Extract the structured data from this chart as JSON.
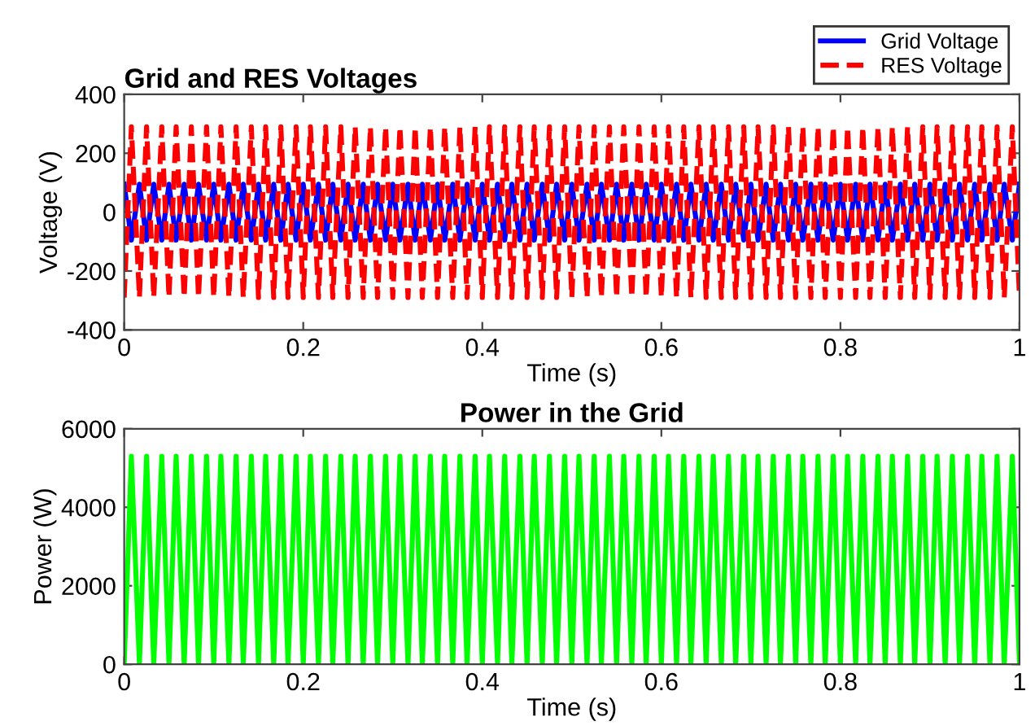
{
  "chart_data": [
    {
      "type": "line",
      "title": "Grid and RES Voltages",
      "xlabel": "Time (s)",
      "ylabel": "Voltage (V)",
      "x": [
        0,
        0.008,
        0.017,
        0.025,
        0.033,
        0.042,
        0.05,
        0.058,
        0.067,
        0.075,
        0.083,
        0.092,
        0.1,
        0.108,
        0.117,
        0.125,
        0.133,
        0.142,
        0.15,
        0.158,
        0.167,
        0.175,
        0.183,
        0.192,
        0.2,
        0.208,
        0.217,
        0.225,
        0.233,
        0.242,
        0.25,
        0.258,
        0.267,
        0.275,
        0.283,
        0.292,
        0.3,
        0.308,
        0.317,
        0.325,
        0.333,
        0.342,
        0.35,
        0.358,
        0.367,
        0.375,
        0.383,
        0.392,
        0.4,
        0.408,
        0.417,
        0.425,
        0.433,
        0.442,
        0.45,
        0.458,
        0.467,
        0.475,
        0.483,
        0.492,
        0.5,
        0.508,
        0.517,
        0.525,
        0.533,
        0.542,
        0.55,
        0.558,
        0.567,
        0.575,
        0.583,
        0.592,
        0.6,
        0.608,
        0.617,
        0.625,
        0.633,
        0.642,
        0.65,
        0.658,
        0.667,
        0.675,
        0.683,
        0.692,
        0.7,
        0.708,
        0.717,
        0.725,
        0.733,
        0.742,
        0.75,
        0.758,
        0.767,
        0.775,
        0.783,
        0.792,
        0.8,
        0.808,
        0.817,
        0.825,
        0.833,
        0.842,
        0.85,
        0.858,
        0.867,
        0.875,
        0.883,
        0.892,
        0.9,
        0.908,
        0.917,
        0.925,
        0.933,
        0.942,
        0.95,
        0.958,
        0.967,
        0.975,
        0.983,
        0.992,
        1
      ],
      "series": [
        {
          "name": "Grid Voltage",
          "color": "#0000ff",
          "line_style": "solid",
          "values": [
            95,
            -95,
            95,
            -95,
            95,
            -95,
            95,
            -95,
            95,
            -95,
            95,
            -95,
            95,
            -95,
            95,
            -95,
            95,
            -95,
            95,
            -95,
            95,
            -95,
            95,
            -95,
            95,
            -95,
            95,
            -95,
            95,
            -95,
            95,
            -95,
            95,
            -95,
            95,
            -95,
            95,
            -95,
            95,
            -95,
            95,
            -95,
            95,
            -95,
            95,
            -95,
            95,
            -95,
            95,
            -95,
            95,
            -95,
            95,
            -95,
            95,
            -95,
            95,
            -95,
            95,
            -95,
            95,
            -95,
            95,
            -95,
            95,
            -95,
            95,
            -95,
            95,
            -95,
            95,
            -95,
            95,
            -95,
            95,
            -95,
            95,
            -95,
            95,
            -95,
            95,
            -95,
            95,
            -95,
            95,
            -95,
            95,
            -95,
            95,
            -95,
            95,
            -95,
            95,
            -95,
            95,
            -95,
            95,
            -95,
            95,
            -95,
            95,
            -95,
            95,
            -95,
            95,
            -95,
            95,
            -95,
            95,
            -95,
            95,
            -95,
            95,
            -95,
            95,
            -95,
            95,
            -95,
            95,
            -95,
            95
          ]
        },
        {
          "name": "RES Voltage",
          "color": "#ff0000",
          "line_style": "dashed",
          "values": [
            -290,
            290,
            -290,
            290,
            -290,
            290,
            -290,
            290,
            -290,
            290,
            -290,
            290,
            -290,
            290,
            -290,
            290,
            -290,
            290,
            -290,
            290,
            -290,
            290,
            -290,
            290,
            -290,
            290,
            -290,
            290,
            -290,
            290,
            -290,
            290,
            -290,
            290,
            -290,
            290,
            -290,
            290,
            -290,
            290,
            -290,
            290,
            -290,
            290,
            -290,
            290,
            -290,
            290,
            -290,
            290,
            -290,
            290,
            -290,
            290,
            -290,
            290,
            -290,
            290,
            -290,
            290,
            -290,
            290,
            -290,
            290,
            -290,
            290,
            -290,
            290,
            -290,
            290,
            -290,
            290,
            -290,
            290,
            -290,
            290,
            -290,
            290,
            -290,
            290,
            -290,
            290,
            -290,
            290,
            -290,
            290,
            -290,
            290,
            -290,
            290,
            -290,
            290,
            -290,
            290,
            -290,
            290,
            -290,
            290,
            -290,
            290,
            -290,
            290,
            -290,
            290,
            -290,
            290,
            -290,
            290,
            -290,
            290,
            -290,
            290,
            -290,
            290,
            -290,
            290,
            -290,
            290,
            -290,
            290,
            -290
          ]
        }
      ],
      "xlim": [
        0,
        1
      ],
      "xticks": [
        0,
        0.2,
        0.4,
        0.6,
        0.8,
        1
      ],
      "ylim": [
        -400,
        400
      ],
      "yticks": [
        -400,
        -200,
        0,
        200,
        400
      ],
      "legend": "top right",
      "marker": "none"
    },
    {
      "type": "line",
      "title": "Power in the Grid",
      "xlabel": "Time (s)",
      "ylabel": "Power (W)",
      "x": [
        0,
        0.008,
        0.017,
        0.025,
        0.033,
        0.042,
        0.05,
        0.058,
        0.067,
        0.075,
        0.083,
        0.092,
        0.1,
        0.108,
        0.117,
        0.125,
        0.133,
        0.142,
        0.15,
        0.158,
        0.167,
        0.175,
        0.183,
        0.192,
        0.2,
        0.208,
        0.217,
        0.225,
        0.233,
        0.242,
        0.25,
        0.258,
        0.267,
        0.275,
        0.283,
        0.292,
        0.3,
        0.308,
        0.317,
        0.325,
        0.333,
        0.342,
        0.35,
        0.358,
        0.367,
        0.375,
        0.383,
        0.392,
        0.4,
        0.408,
        0.417,
        0.425,
        0.433,
        0.442,
        0.45,
        0.458,
        0.467,
        0.475,
        0.483,
        0.492,
        0.5,
        0.508,
        0.517,
        0.525,
        0.533,
        0.542,
        0.55,
        0.558,
        0.567,
        0.575,
        0.583,
        0.592,
        0.6,
        0.608,
        0.617,
        0.625,
        0.633,
        0.642,
        0.65,
        0.658,
        0.667,
        0.675,
        0.683,
        0.692,
        0.7,
        0.708,
        0.717,
        0.725,
        0.733,
        0.742,
        0.75,
        0.758,
        0.767,
        0.775,
        0.783,
        0.792,
        0.8,
        0.808,
        0.817,
        0.825,
        0.833,
        0.842,
        0.85,
        0.858,
        0.867,
        0.875,
        0.883,
        0.892,
        0.9,
        0.908,
        0.917,
        0.925,
        0.933,
        0.942,
        0.95,
        0.958,
        0.967,
        0.975,
        0.983,
        0.992,
        1
      ],
      "series": [
        {
          "color": "#00ff00",
          "line_style": "solid",
          "values": [
            0,
            5300,
            0,
            5300,
            0,
            5300,
            0,
            5300,
            0,
            5300,
            0,
            5300,
            0,
            5300,
            0,
            5300,
            0,
            5300,
            0,
            5300,
            0,
            5300,
            0,
            5300,
            0,
            5300,
            0,
            5300,
            0,
            5300,
            0,
            5300,
            0,
            5300,
            0,
            5300,
            0,
            5300,
            0,
            5300,
            0,
            5300,
            0,
            5300,
            0,
            5300,
            0,
            5300,
            0,
            5300,
            0,
            5300,
            0,
            5300,
            0,
            5300,
            0,
            5300,
            0,
            5300,
            0,
            5300,
            0,
            5300,
            0,
            5300,
            0,
            5300,
            0,
            5300,
            0,
            5300,
            0,
            5300,
            0,
            5300,
            0,
            5300,
            0,
            5300,
            0,
            5300,
            0,
            5300,
            0,
            5300,
            0,
            5300,
            0,
            5300,
            0,
            5300,
            0,
            5300,
            0,
            5300,
            0,
            5300,
            0,
            5300,
            0,
            5300,
            0,
            5300,
            0,
            5300,
            0,
            5300,
            0,
            5300,
            0,
            5300,
            0,
            5300,
            0,
            5300,
            0,
            5300,
            0,
            5300,
            0
          ]
        }
      ],
      "xlim": [
        0,
        1
      ],
      "xticks": [
        0,
        0.2,
        0.4,
        0.6,
        0.8,
        1
      ],
      "ylim": [
        0,
        6000
      ],
      "yticks": [
        0,
        2000,
        4000,
        6000
      ],
      "marker": "none"
    }
  ]
}
